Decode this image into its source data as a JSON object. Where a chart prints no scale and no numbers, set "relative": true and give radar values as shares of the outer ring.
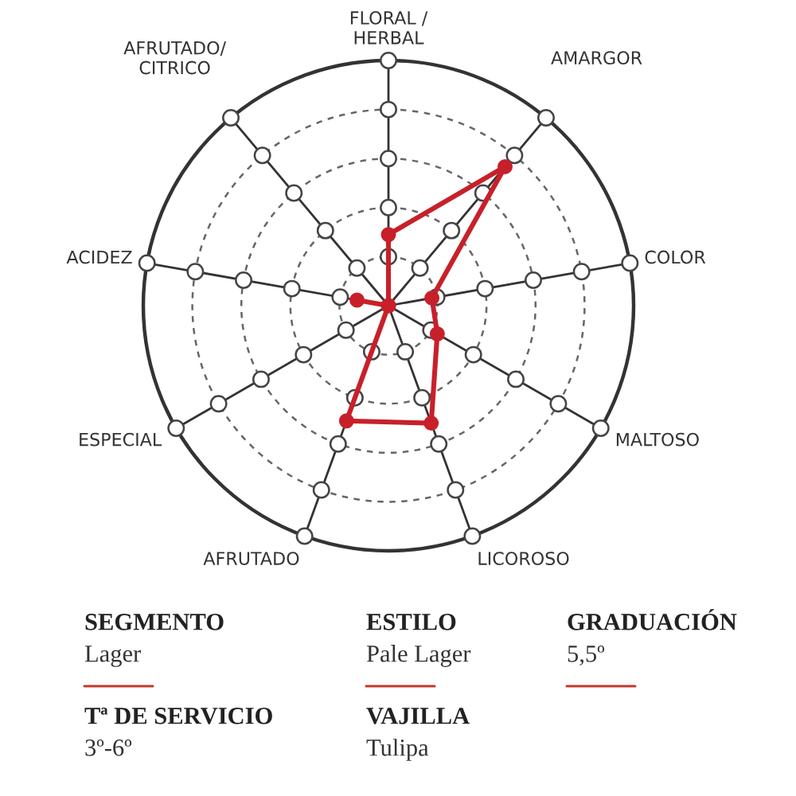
{
  "chart_data": [
    {
      "type": "radar",
      "categories": [
        "FLORAL /\nHERBAL",
        "AMARGOR",
        "COLOR",
        "MALTOSO",
        "LICOROSO",
        "AFRUTADO",
        "ESPECIAL",
        "ACIDEZ",
        "AFRUTADO/\nCITRICO"
      ],
      "relative": true,
      "grid": true,
      "marker": "circle",
      "series": [
        {
          "color": "#c8202a",
          "values": [
            0.29,
            0.74,
            0.18,
            0.23,
            0.51,
            0.5,
            0,
            0.13,
            0
          ]
        }
      ]
    },
    {
      "type": "other",
      "annotations": [
        "SEGMENTO",
        "Lager",
        "ESTILO",
        "Pale Lager",
        "GRADUACIÓN",
        "5,5º",
        "Tª DE SERVICIO",
        "3º-6º",
        "VAJILLA",
        "Tulipa"
      ]
    }
  ]
}
